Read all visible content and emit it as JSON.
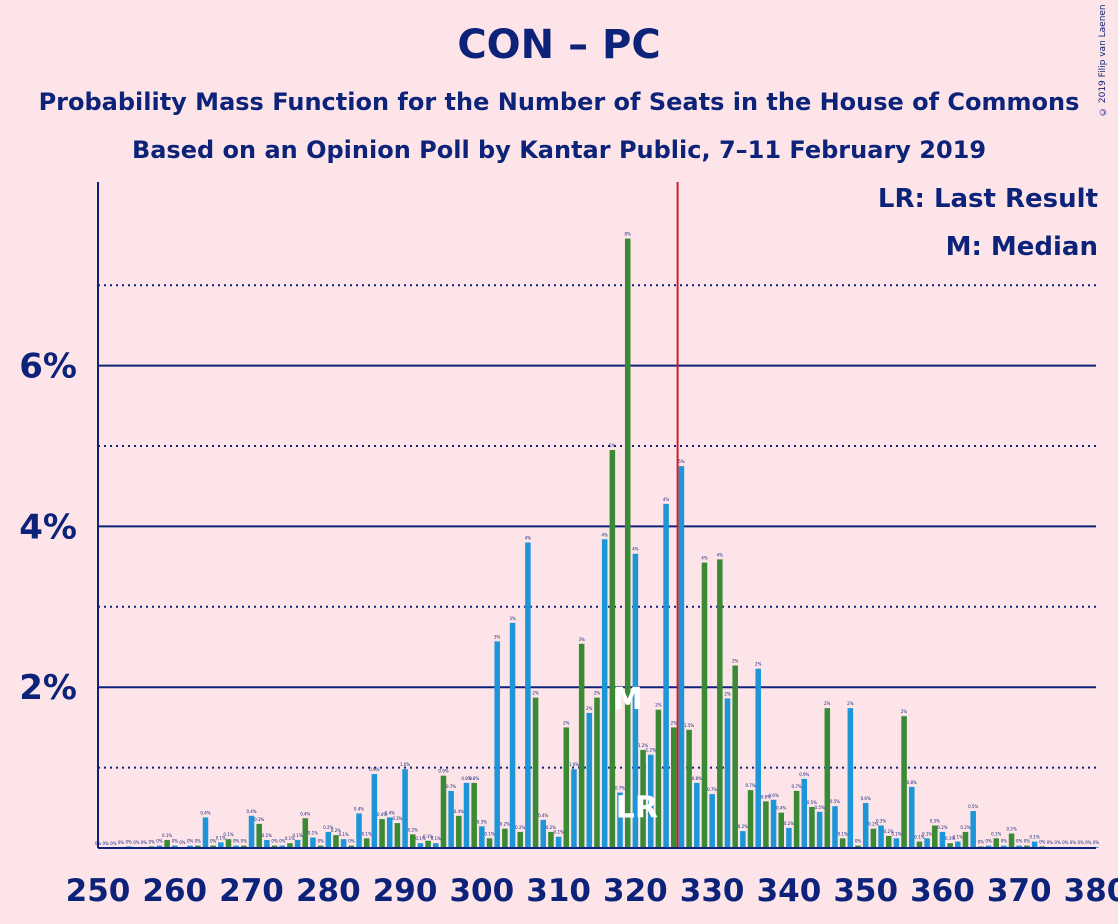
{
  "header": {
    "title": "CON – PC",
    "subtitle1": "Probability Mass Function for the Number of Seats in the House of Commons",
    "subtitle2": "Based on an Opinion Poll by Kantar Public, 7–11 February 2019",
    "legend_lr": "LR: Last Result",
    "legend_m": "M: Median",
    "copyright": "© 2019 Filip van Laenen"
  },
  "colors": {
    "background": "#FDE4E8",
    "text": "#0D237A",
    "bar_even": "#1C96D8",
    "bar_odd": "#3A8A35",
    "last_result_line": "#CC1F2E"
  },
  "chart_data": {
    "type": "bar",
    "title": "CON – PC",
    "xlabel": "",
    "ylabel": "",
    "xlim": [
      250,
      380
    ],
    "ylim": [
      0,
      8.2
    ],
    "x_ticks": [
      250,
      260,
      270,
      280,
      290,
      300,
      310,
      320,
      330,
      340,
      350,
      360,
      370,
      380
    ],
    "y_ticks": [
      2,
      4,
      6
    ],
    "y_tick_labels": [
      "2%",
      "4%",
      "6%"
    ],
    "y_minor_dotted": [
      1,
      3,
      5,
      7
    ],
    "last_result": 326,
    "last_result_label": "LR",
    "median": 319,
    "median_label": "M",
    "x": [
      250,
      251,
      252,
      253,
      254,
      255,
      256,
      257,
      258,
      259,
      260,
      261,
      262,
      263,
      264,
      265,
      266,
      267,
      268,
      269,
      270,
      271,
      272,
      273,
      274,
      275,
      276,
      277,
      278,
      279,
      280,
      281,
      282,
      283,
      284,
      285,
      286,
      287,
      288,
      289,
      290,
      291,
      292,
      293,
      294,
      295,
      296,
      297,
      298,
      299,
      300,
      301,
      302,
      303,
      304,
      305,
      306,
      307,
      308,
      309,
      310,
      311,
      312,
      313,
      314,
      315,
      316,
      317,
      318,
      319,
      320,
      321,
      322,
      323,
      324,
      325,
      326,
      327,
      328,
      329,
      330,
      331,
      332,
      333,
      334,
      335,
      336,
      337,
      338,
      339,
      340,
      341,
      342,
      343,
      344,
      345,
      346,
      347,
      348,
      349,
      350,
      351,
      352,
      353,
      354,
      355,
      356,
      357,
      358,
      359,
      360,
      361,
      362,
      363,
      364,
      365,
      366,
      367,
      368,
      369,
      370,
      371,
      372,
      373,
      374,
      375,
      376,
      377,
      378,
      379,
      380
    ],
    "values": [
      0,
      0,
      0,
      0.01,
      0.02,
      0.01,
      0.01,
      0.02,
      0.03,
      0.1,
      0.03,
      0.01,
      0.03,
      0.03,
      0.38,
      0.03,
      0.07,
      0.11,
      0.03,
      0.03,
      0.4,
      0.3,
      0.1,
      0.03,
      0.03,
      0.06,
      0.1,
      0.37,
      0.13,
      0.03,
      0.2,
      0.16,
      0.11,
      0.03,
      0.43,
      0.12,
      0.92,
      0.36,
      0.38,
      0.31,
      0.98,
      0.17,
      0.06,
      0.09,
      0.06,
      0.9,
      0.71,
      0.4,
      0.81,
      0.81,
      0.27,
      0.12,
      2.57,
      0.24,
      2.8,
      0.2,
      3.8,
      1.87,
      0.35,
      0.2,
      0.14,
      1.5,
      0.98,
      2.54,
      1.68,
      1.87,
      3.84,
      4.95,
      0.69,
      7.58,
      3.66,
      1.22,
      1.16,
      1.72,
      4.28,
      1.5,
      4.75,
      1.47,
      0.81,
      3.55,
      0.67,
      3.59,
      1.86,
      2.27,
      0.21,
      0.72,
      2.23,
      0.58,
      0.6,
      0.44,
      0.25,
      0.71,
      0.86,
      0.51,
      0.45,
      1.74,
      0.52,
      0.12,
      1.74,
      0.03,
      0.56,
      0.24,
      0.28,
      0.15,
      0.12,
      1.64,
      0.76,
      0.08,
      0.12,
      0.28,
      0.2,
      0.06,
      0.08,
      0.2,
      0.46,
      0.02,
      0.03,
      0.12,
      0.03,
      0.18,
      0.03,
      0.03,
      0.08,
      0.02,
      0.01,
      0.01,
      0.01,
      0.01,
      0.01,
      0.01,
      0.01
    ],
    "value_labels": [
      "0%",
      "0%",
      "0%",
      "0%",
      "0%",
      "0%",
      "0%",
      "0%",
      "0%",
      "0.1%",
      "0%",
      "0%",
      "0%",
      "0%",
      "0.4%",
      "0%",
      "0.1%",
      "0.1%",
      "0%",
      "0%",
      "0.4%",
      "0.3%",
      "0.1%",
      "0%",
      "0%",
      "0.1%",
      "0.1%",
      "0.4%",
      "0.1%",
      "0%",
      "0.2%",
      "0.2%",
      "0.1%",
      "0%",
      "0.4%",
      "0.1%",
      "0.9%",
      "0.4%",
      "0.4%",
      "0.3%",
      "1.0%",
      "0.2%",
      "0.1%",
      "0.1%",
      "0.1%",
      "0.9%",
      "0.7%",
      "0.4%",
      "0.8%",
      "0.8%",
      "0.3%",
      "0.1%",
      "3%",
      "0.2%",
      "3%",
      "0.2%",
      "4%",
      "2%",
      "0.4%",
      "0.2%",
      "0.1%",
      "2%",
      "1.0%",
      "3%",
      "2%",
      "2%",
      "4%",
      "5%",
      "0.7%",
      "8%",
      "4%",
      "1.2%",
      "1.2%",
      "2%",
      "4%",
      "2%",
      "5%",
      "1.5%",
      "0.8%",
      "4%",
      "0.7%",
      "4%",
      "2%",
      "2%",
      "0.2%",
      "0.7%",
      "2%",
      "0.6%",
      "0.6%",
      "0.4%",
      "0.2%",
      "0.7%",
      "0.9%",
      "0.5%",
      "0.5%",
      "2%",
      "0.5%",
      "0.1%",
      "2%",
      "0%",
      "0.6%",
      "0.2%",
      "0.3%",
      "0.2%",
      "0.1%",
      "2%",
      "0.8%",
      "0.1%",
      "0.1%",
      "0.3%",
      "0.2%",
      "0.1%",
      "0.1%",
      "0.2%",
      "0.5%",
      "0%",
      "0%",
      "0.1%",
      "0%",
      "0.2%",
      "0%",
      "0%",
      "0.1%",
      "0%",
      "0%",
      "0%",
      "0%",
      "0%",
      "0%",
      "0%",
      "0%"
    ]
  }
}
